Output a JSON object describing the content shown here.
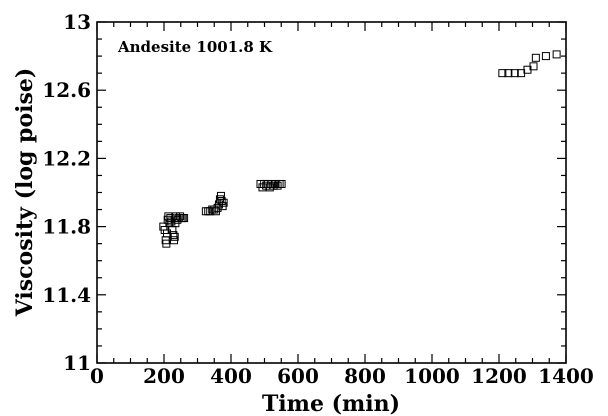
{
  "chart_data": {
    "type": "scatter",
    "xlabel": "Time  (min)",
    "ylabel": "Viscosity  (log  poise)",
    "annotation": "Andesite  1001.8  K",
    "xlim": [
      0,
      1400
    ],
    "ylim": [
      11,
      13
    ],
    "x_ticks": [
      "0",
      "200",
      "400",
      "600",
      "800",
      "1000",
      "1200",
      "1400"
    ],
    "y_ticks": [
      "11",
      "11.4",
      "11.8",
      "12.2",
      "12.6",
      "13"
    ],
    "x_tick_values": [
      0,
      200,
      400,
      600,
      800,
      1000,
      1200,
      1400
    ],
    "y_tick_values": [
      11,
      11.4,
      11.8,
      12.2,
      12.6,
      13
    ],
    "marker": "open-square",
    "marker_color": "#000000",
    "grid": false,
    "series": [
      {
        "points": [
          [
            198,
            11.8
          ],
          [
            202,
            11.78
          ],
          [
            205,
            11.72
          ],
          [
            207,
            11.7
          ],
          [
            209,
            11.76
          ],
          [
            211,
            11.84
          ],
          [
            213,
            11.86
          ],
          [
            216,
            11.82
          ],
          [
            219,
            11.85
          ],
          [
            222,
            11.83
          ],
          [
            225,
            11.78
          ],
          [
            228,
            11.75
          ],
          [
            230,
            11.72
          ],
          [
            232,
            11.74
          ],
          [
            234,
            11.82
          ],
          [
            236,
            11.86
          ],
          [
            240,
            11.84
          ],
          [
            244,
            11.85
          ],
          [
            248,
            11.86
          ],
          [
            252,
            11.85
          ],
          [
            256,
            11.85
          ],
          [
            260,
            11.85
          ],
          [
            325,
            11.89
          ],
          [
            332,
            11.89
          ],
          [
            338,
            11.89
          ],
          [
            344,
            11.9
          ],
          [
            350,
            11.9
          ],
          [
            355,
            11.89
          ],
          [
            360,
            11.91
          ],
          [
            364,
            11.93
          ],
          [
            367,
            11.96
          ],
          [
            370,
            11.98
          ],
          [
            372,
            11.95
          ],
          [
            375,
            11.92
          ],
          [
            378,
            11.94
          ],
          [
            488,
            12.05
          ],
          [
            494,
            12.03
          ],
          [
            499,
            12.05
          ],
          [
            505,
            12.04
          ],
          [
            510,
            12.05
          ],
          [
            516,
            12.03
          ],
          [
            521,
            12.05
          ],
          [
            527,
            12.04
          ],
          [
            533,
            12.05
          ],
          [
            539,
            12.04
          ],
          [
            545,
            12.05
          ],
          [
            551,
            12.05
          ],
          [
            1210,
            12.7
          ],
          [
            1228,
            12.7
          ],
          [
            1247,
            12.7
          ],
          [
            1266,
            12.7
          ],
          [
            1285,
            12.72
          ],
          [
            1303,
            12.74
          ],
          [
            1310,
            12.79
          ],
          [
            1340,
            12.8
          ],
          [
            1372,
            12.81
          ]
        ]
      }
    ]
  }
}
